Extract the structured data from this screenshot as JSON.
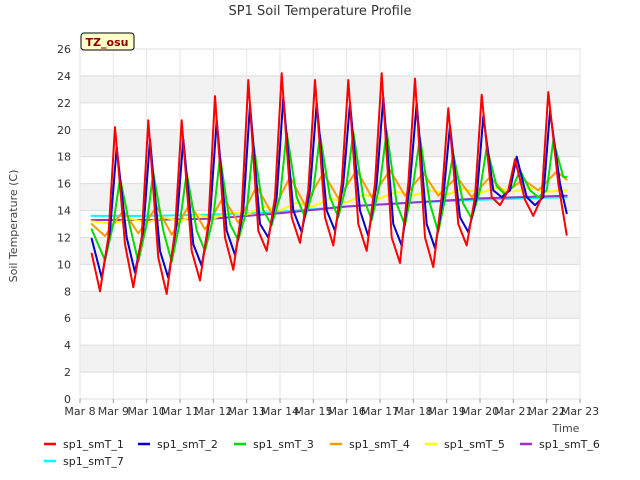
{
  "chart_data": {
    "type": "line",
    "title": "SP1 Soil Temperature Profile",
    "xlabel": "Time",
    "ylabel": "Soil Temperature (C)",
    "timezone_label": "TZ_osu",
    "xlim": [
      0,
      15
    ],
    "ylim": [
      0,
      26
    ],
    "x_tick_labels": [
      "Mar 8",
      "Mar 9",
      "Mar 10",
      "Mar 11",
      "Mar 12",
      "Mar 13",
      "Mar 14",
      "Mar 15",
      "Mar 16",
      "Mar 17",
      "Mar 18",
      "Mar 19",
      "Mar 20",
      "Mar 21",
      "Mar 22",
      "Mar 23"
    ],
    "y_ticks": [
      0,
      2,
      4,
      6,
      8,
      10,
      12,
      14,
      16,
      18,
      20,
      22,
      24,
      26
    ],
    "grid": true,
    "legend_position": "bottom",
    "series": [
      {
        "name": "sp1_smT_1",
        "color": "#ff0000",
        "x": [
          0.35,
          0.6,
          0.85,
          1.05,
          1.35,
          1.6,
          1.85,
          2.05,
          2.35,
          2.6,
          2.85,
          3.05,
          3.35,
          3.6,
          3.85,
          4.05,
          4.35,
          4.6,
          4.85,
          5.05,
          5.35,
          5.6,
          5.85,
          6.05,
          6.35,
          6.6,
          6.85,
          7.05,
          7.35,
          7.6,
          7.85,
          8.05,
          8.35,
          8.6,
          8.85,
          9.05,
          9.35,
          9.6,
          9.85,
          10.05,
          10.35,
          10.6,
          10.85,
          11.05,
          11.35,
          11.6,
          11.85,
          12.05,
          12.35,
          12.6,
          12.85,
          13.05,
          13.35,
          13.6,
          13.85,
          14.05,
          14.35,
          14.6
        ],
        "y": [
          10.8,
          8.0,
          12.0,
          20.2,
          11.5,
          8.3,
          12.0,
          20.7,
          10.5,
          7.8,
          12.5,
          20.7,
          11.0,
          8.8,
          13.0,
          22.5,
          12.0,
          9.6,
          14.0,
          23.7,
          12.5,
          11.0,
          15.0,
          24.2,
          13.5,
          11.6,
          15.5,
          23.7,
          13.5,
          11.4,
          16.0,
          23.7,
          13.0,
          11.0,
          16.0,
          24.2,
          12.0,
          10.1,
          16.0,
          23.8,
          12.0,
          9.8,
          15.0,
          21.6,
          13.0,
          11.4,
          15.0,
          22.6,
          15.0,
          14.4,
          15.5,
          17.8,
          14.8,
          13.6,
          15.0,
          22.8,
          16.0,
          12.2
        ]
      },
      {
        "name": "sp1_smT_2",
        "color": "#0000cc",
        "x": [
          0.35,
          0.65,
          0.9,
          1.1,
          1.4,
          1.65,
          1.9,
          2.1,
          2.4,
          2.65,
          2.9,
          3.1,
          3.4,
          3.65,
          3.9,
          4.1,
          4.4,
          4.65,
          4.9,
          5.1,
          5.4,
          5.65,
          5.9,
          6.1,
          6.4,
          6.65,
          6.9,
          7.1,
          7.4,
          7.65,
          7.9,
          8.1,
          8.4,
          8.65,
          8.9,
          9.1,
          9.4,
          9.65,
          9.9,
          10.1,
          10.4,
          10.65,
          10.9,
          11.1,
          11.4,
          11.65,
          11.9,
          12.1,
          12.4,
          12.65,
          12.9,
          13.1,
          13.4,
          13.65,
          13.9,
          14.1,
          14.4,
          14.6
        ],
        "y": [
          11.9,
          9.0,
          12.5,
          18.7,
          12.0,
          9.4,
          12.5,
          19.3,
          11.0,
          9.0,
          13.0,
          19.3,
          11.5,
          9.9,
          13.5,
          20.7,
          12.5,
          10.7,
          14.0,
          21.9,
          13.0,
          12.0,
          15.0,
          22.4,
          14.0,
          12.4,
          15.5,
          22.0,
          14.0,
          12.5,
          16.0,
          22.0,
          14.0,
          12.1,
          16.0,
          22.4,
          13.0,
          11.4,
          16.0,
          22.0,
          13.0,
          11.2,
          15.0,
          20.3,
          13.5,
          12.4,
          15.0,
          21.0,
          15.5,
          15.0,
          15.5,
          18.0,
          15.0,
          14.4,
          15.0,
          21.4,
          16.0,
          13.8
        ]
      },
      {
        "name": "sp1_smT_3",
        "color": "#00dd00",
        "x": [
          0.35,
          0.75,
          1.0,
          1.2,
          1.5,
          1.75,
          2.0,
          2.2,
          2.5,
          2.75,
          3.0,
          3.2,
          3.5,
          3.75,
          4.0,
          4.2,
          4.5,
          4.75,
          5.0,
          5.2,
          5.5,
          5.75,
          6.0,
          6.2,
          6.5,
          6.75,
          7.0,
          7.2,
          7.5,
          7.75,
          8.0,
          8.2,
          8.5,
          8.75,
          9.0,
          9.2,
          9.5,
          9.75,
          10.0,
          10.2,
          10.5,
          10.75,
          11.0,
          11.2,
          11.5,
          11.75,
          12.0,
          12.2,
          12.5,
          12.75,
          13.0,
          13.2,
          13.5,
          13.75,
          14.0,
          14.2,
          14.5,
          14.6
        ],
        "y": [
          12.6,
          10.3,
          13.0,
          16.4,
          12.8,
          10.2,
          13.0,
          16.8,
          12.5,
          10.2,
          13.2,
          16.8,
          12.5,
          11.0,
          13.5,
          18.0,
          13.0,
          11.8,
          14.0,
          19.0,
          14.0,
          12.9,
          15.0,
          19.8,
          15.0,
          13.5,
          15.5,
          19.6,
          15.0,
          13.5,
          16.0,
          19.8,
          15.0,
          13.3,
          16.0,
          19.9,
          14.5,
          12.9,
          16.0,
          19.4,
          14.5,
          12.4,
          15.5,
          18.2,
          14.5,
          13.4,
          15.5,
          18.7,
          15.8,
          15.2,
          15.8,
          17.0,
          15.5,
          15.0,
          15.5,
          19.2,
          16.5,
          16.5
        ]
      },
      {
        "name": "sp1_smT_4",
        "color": "#ff9900",
        "x": [
          0.35,
          0.75,
          1.3,
          1.75,
          2.3,
          2.75,
          3.3,
          3.75,
          4.3,
          4.75,
          5.3,
          5.75,
          6.3,
          6.75,
          7.3,
          7.75,
          8.3,
          8.75,
          9.3,
          9.75,
          10.3,
          10.75,
          11.3,
          11.75,
          12.3,
          12.75,
          13.3,
          13.75,
          14.3,
          14.6
        ],
        "y": [
          13.0,
          12.1,
          14.0,
          12.3,
          14.3,
          12.2,
          14.5,
          12.6,
          15.0,
          13.1,
          15.8,
          13.8,
          16.5,
          14.4,
          16.8,
          14.9,
          17.0,
          15.0,
          17.0,
          15.1,
          16.8,
          15.1,
          16.5,
          15.0,
          16.5,
          15.3,
          16.3,
          15.5,
          16.9,
          16.3
        ]
      },
      {
        "name": "sp1_smT_5",
        "color": "#ffff00",
        "x": [
          0.35,
          1.0,
          1.5,
          2.0,
          2.5,
          3.0,
          3.5,
          4.0,
          4.5,
          5.0,
          5.5,
          6.0,
          6.5,
          7.0,
          7.5,
          8.0,
          8.5,
          9.0,
          9.5,
          10.0,
          10.5,
          11.0,
          11.5,
          12.0,
          12.5,
          13.0,
          13.5,
          14.0,
          14.6
        ],
        "y": [
          13.2,
          13.0,
          13.4,
          13.1,
          13.5,
          13.2,
          13.7,
          13.4,
          13.9,
          13.7,
          14.3,
          14.0,
          14.6,
          14.3,
          14.9,
          14.6,
          15.2,
          14.9,
          15.4,
          15.1,
          15.5,
          15.2,
          15.6,
          15.3,
          15.7,
          15.4,
          15.7,
          15.4,
          15.5
        ]
      },
      {
        "name": "sp1_smT_6",
        "color": "#9932cc",
        "x": [
          0.35,
          2.0,
          4.0,
          6.0,
          8.0,
          10.0,
          12.0,
          14.6
        ],
        "y": [
          13.3,
          13.3,
          13.4,
          13.8,
          14.3,
          14.6,
          14.9,
          15.1
        ]
      },
      {
        "name": "sp1_smT_7",
        "color": "#00ffff",
        "x": [
          0.35,
          2.0,
          4.0,
          6.0,
          8.0,
          10.0,
          12.0,
          14.6
        ],
        "y": [
          13.6,
          13.6,
          13.7,
          13.9,
          14.3,
          14.6,
          14.8,
          15.0
        ]
      }
    ]
  }
}
